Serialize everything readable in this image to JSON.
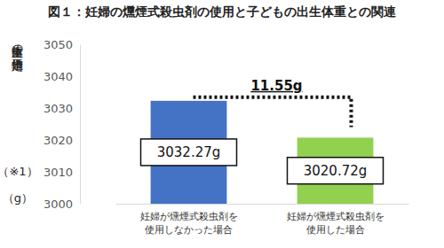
{
  "chart_data": {
    "type": "bar",
    "title": "図１：妊婦の燻煙式殺虫剤の使用と子どもの出生体重との関連",
    "y_label": [
      "出生体重の推定平均値",
      "（※1）",
      "（g）"
    ],
    "categories": [
      "妊婦が燻煙式殺虫剤を\n使用しなかった場合",
      "妊婦が燻煙式殺虫剤を\n使用した場合"
    ],
    "values": [
      3032.27,
      3020.72
    ],
    "colors": [
      "#4472c4",
      "#92d050"
    ],
    "ylim": [
      3000,
      3050
    ],
    "yticks": [
      3000,
      3010,
      3020,
      3030,
      3040,
      3050
    ],
    "grid": false,
    "data_labels": true,
    "value_labels": [
      "3032.27g",
      "3020.72g"
    ],
    "annotation": "11.55g"
  }
}
